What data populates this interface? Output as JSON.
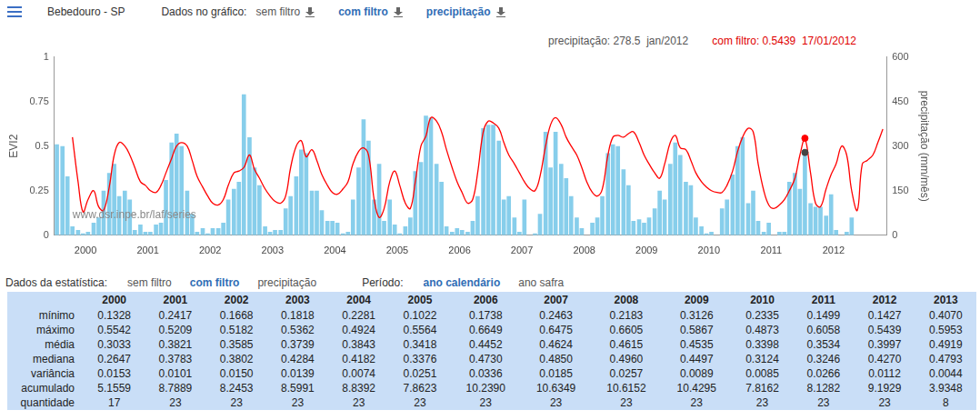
{
  "header": {
    "site": "Bebedouro - SP",
    "data_label": "Dados no gráfico:",
    "options": [
      {
        "text": "sem filtro",
        "active": false
      },
      {
        "text": "com filtro",
        "active": true
      },
      {
        "text": "precipitação",
        "active": true
      }
    ]
  },
  "readout": [
    {
      "text": "precipitação: 278.5  jan/2012",
      "color": "#555555"
    },
    {
      "text": "com filtro: 0.5439  17/01/2012",
      "color": "#e00000"
    }
  ],
  "chart_data": {
    "type": "bar",
    "y_label": "EVI2",
    "y2_label": "precipitação (mm/mês)",
    "annotations": [
      "www.dsr.inpe.br/laf/series"
    ],
    "xlim": [
      2000,
      2013.35
    ],
    "xticks": [
      {
        "value": 2000.5,
        "label": "2000"
      },
      {
        "value": 2001.5,
        "label": "2001"
      },
      {
        "value": 2002.5,
        "label": "2002"
      },
      {
        "value": 2003.5,
        "label": "2003"
      },
      {
        "value": 2004.5,
        "label": "2004"
      },
      {
        "value": 2005.5,
        "label": "2005"
      },
      {
        "value": 2006.5,
        "label": "2006"
      },
      {
        "value": 2007.5,
        "label": "2007"
      },
      {
        "value": 2008.5,
        "label": "2008"
      },
      {
        "value": 2009.5,
        "label": "2009"
      },
      {
        "value": 2010.5,
        "label": "2010"
      },
      {
        "value": 2011.5,
        "label": "2011"
      },
      {
        "value": 2012.5,
        "label": "2012"
      }
    ],
    "ylim": [
      0,
      1
    ],
    "yticks": [
      0,
      0.25,
      0.5,
      0.75,
      1
    ],
    "y2lim": [
      0,
      600
    ],
    "y2ticks": [
      0,
      150,
      300,
      450,
      600
    ],
    "grid": false,
    "series": [
      {
        "name": "precipitação",
        "type": "bar",
        "axis": "y2",
        "color": "#87ceeb",
        "x": [
          2000.04,
          2000.13,
          2000.21,
          2000.29,
          2000.38,
          2000.46,
          2000.54,
          2000.63,
          2000.71,
          2000.79,
          2000.88,
          2000.96,
          2001.04,
          2001.13,
          2001.21,
          2001.29,
          2001.38,
          2001.46,
          2001.54,
          2001.63,
          2001.71,
          2001.79,
          2001.88,
          2001.96,
          2002.04,
          2002.13,
          2002.21,
          2002.29,
          2002.38,
          2002.46,
          2002.54,
          2002.63,
          2002.71,
          2002.79,
          2002.88,
          2002.96,
          2003.04,
          2003.13,
          2003.21,
          2003.29,
          2003.38,
          2003.46,
          2003.54,
          2003.63,
          2003.71,
          2003.79,
          2003.88,
          2003.96,
          2004.04,
          2004.13,
          2004.21,
          2004.29,
          2004.38,
          2004.46,
          2004.54,
          2004.63,
          2004.71,
          2004.79,
          2004.88,
          2004.96,
          2005.04,
          2005.13,
          2005.21,
          2005.29,
          2005.38,
          2005.46,
          2005.54,
          2005.63,
          2005.71,
          2005.79,
          2005.88,
          2005.96,
          2006.04,
          2006.13,
          2006.21,
          2006.29,
          2006.38,
          2006.46,
          2006.54,
          2006.63,
          2006.71,
          2006.79,
          2006.88,
          2006.96,
          2007.04,
          2007.13,
          2007.21,
          2007.29,
          2007.38,
          2007.46,
          2007.54,
          2007.63,
          2007.71,
          2007.79,
          2007.88,
          2007.96,
          2008.04,
          2008.13,
          2008.21,
          2008.29,
          2008.38,
          2008.46,
          2008.54,
          2008.63,
          2008.71,
          2008.79,
          2008.88,
          2008.96,
          2009.04,
          2009.13,
          2009.21,
          2009.29,
          2009.38,
          2009.46,
          2009.54,
          2009.63,
          2009.71,
          2009.79,
          2009.88,
          2009.96,
          2010.04,
          2010.13,
          2010.21,
          2010.29,
          2010.38,
          2010.46,
          2010.54,
          2010.63,
          2010.71,
          2010.79,
          2010.88,
          2010.96,
          2011.04,
          2011.13,
          2011.21,
          2011.29,
          2011.38,
          2011.46,
          2011.54,
          2011.63,
          2011.71,
          2011.79,
          2011.88,
          2011.96,
          2012.04,
          2012.13,
          2012.21,
          2012.29,
          2012.38,
          2012.46,
          2012.54,
          2012.63,
          2012.71,
          2012.79
        ],
        "values": [
          306,
          300,
          198,
          30,
          18,
          6,
          12,
          42,
          60,
          150,
          210,
          240,
          132,
          150,
          120,
          18,
          36,
          12,
          12,
          36,
          42,
          186,
          312,
          342,
          300,
          150,
          72,
          12,
          24,
          6,
          24,
          24,
          42,
          120,
          156,
          180,
          474,
          330,
          228,
          168,
          30,
          12,
          18,
          18,
          90,
          132,
          198,
          288,
          276,
          150,
          150,
          84,
          48,
          48,
          42,
          6,
          12,
          120,
          228,
          390,
          318,
          120,
          240,
          48,
          120,
          36,
          6,
          30,
          60,
          216,
          246,
          402,
          396,
          240,
          180,
          30,
          12,
          24,
          18,
          12,
          48,
          132,
          360,
          372,
          372,
          318,
          120,
          132,
          60,
          12,
          120,
          0,
          6,
          72,
          348,
          228,
          348,
          240,
          192,
          132,
          60,
          24,
          0,
          42,
          60,
          132,
          276,
          306,
          300,
          222,
          168,
          48,
          54,
          42,
          60,
          90,
          150,
          120,
          240,
          312,
          270,
          180,
          168,
          60,
          30,
          6,
          12,
          0,
          90,
          120,
          204,
          300,
          330,
          108,
          150,
          48,
          12,
          42,
          0,
          12,
          12,
          180,
          210,
          156,
          278.5,
          108,
          96,
          96,
          66,
          138,
          18,
          0,
          12,
          60
        ]
      },
      {
        "name": "com filtro",
        "type": "line",
        "axis": "y",
        "color": "#ff0000",
        "x": [
          2000.29,
          2000.38,
          2000.46,
          2000.54,
          2000.63,
          2000.71,
          2000.79,
          2000.88,
          2000.96,
          2001.04,
          2001.13,
          2001.21,
          2001.29,
          2001.38,
          2001.46,
          2001.54,
          2001.63,
          2001.71,
          2001.79,
          2001.88,
          2001.96,
          2002.04,
          2002.13,
          2002.21,
          2002.29,
          2002.38,
          2002.46,
          2002.54,
          2002.63,
          2002.71,
          2002.79,
          2002.88,
          2002.96,
          2003.04,
          2003.13,
          2003.21,
          2003.29,
          2003.38,
          2003.46,
          2003.54,
          2003.63,
          2003.71,
          2003.79,
          2003.88,
          2003.96,
          2004.04,
          2004.13,
          2004.21,
          2004.29,
          2004.38,
          2004.46,
          2004.54,
          2004.63,
          2004.71,
          2004.79,
          2004.88,
          2004.96,
          2005.04,
          2005.13,
          2005.21,
          2005.29,
          2005.38,
          2005.46,
          2005.54,
          2005.63,
          2005.71,
          2005.79,
          2005.88,
          2005.96,
          2006.04,
          2006.13,
          2006.21,
          2006.29,
          2006.38,
          2006.46,
          2006.54,
          2006.63,
          2006.71,
          2006.79,
          2006.88,
          2006.96,
          2007.04,
          2007.13,
          2007.21,
          2007.29,
          2007.38,
          2007.46,
          2007.54,
          2007.63,
          2007.71,
          2007.79,
          2007.88,
          2007.96,
          2008.04,
          2008.13,
          2008.21,
          2008.29,
          2008.38,
          2008.46,
          2008.54,
          2008.63,
          2008.71,
          2008.79,
          2008.88,
          2008.96,
          2009.04,
          2009.13,
          2009.21,
          2009.29,
          2009.38,
          2009.46,
          2009.54,
          2009.63,
          2009.71,
          2009.79,
          2009.88,
          2009.96,
          2010.04,
          2010.13,
          2010.21,
          2010.29,
          2010.38,
          2010.46,
          2010.54,
          2010.63,
          2010.71,
          2010.79,
          2010.88,
          2010.96,
          2011.04,
          2011.13,
          2011.21,
          2011.29,
          2011.38,
          2011.46,
          2011.54,
          2011.63,
          2011.71,
          2011.79,
          2011.88,
          2011.96,
          2012.04,
          2012.13,
          2012.21,
          2012.29,
          2012.38,
          2012.46,
          2012.54,
          2012.63,
          2012.71,
          2012.79,
          2012.88,
          2012.96,
          2013.04,
          2013.13,
          2013.21,
          2013.29
        ],
        "values": [
          0.55,
          0.3,
          0.13,
          0.2,
          0.25,
          0.16,
          0.14,
          0.27,
          0.45,
          0.52,
          0.5,
          0.45,
          0.38,
          0.3,
          0.28,
          0.25,
          0.24,
          0.28,
          0.35,
          0.43,
          0.5,
          0.52,
          0.5,
          0.42,
          0.33,
          0.27,
          0.22,
          0.18,
          0.17,
          0.2,
          0.28,
          0.35,
          0.36,
          0.38,
          0.45,
          0.37,
          0.32,
          0.26,
          0.22,
          0.19,
          0.18,
          0.22,
          0.38,
          0.5,
          0.53,
          0.44,
          0.48,
          0.42,
          0.34,
          0.28,
          0.24,
          0.23,
          0.26,
          0.3,
          0.4,
          0.47,
          0.49,
          0.45,
          0.2,
          0.1,
          0.15,
          0.3,
          0.36,
          0.28,
          0.18,
          0.15,
          0.3,
          0.5,
          0.556,
          0.66,
          0.64,
          0.58,
          0.48,
          0.38,
          0.3,
          0.24,
          0.18,
          0.2,
          0.35,
          0.58,
          0.64,
          0.63,
          0.6,
          0.52,
          0.45,
          0.4,
          0.35,
          0.3,
          0.26,
          0.25,
          0.33,
          0.5,
          0.62,
          0.66,
          0.62,
          0.55,
          0.5,
          0.45,
          0.38,
          0.3,
          0.24,
          0.22,
          0.26,
          0.45,
          0.55,
          0.56,
          0.55,
          0.57,
          0.58,
          0.52,
          0.45,
          0.4,
          0.35,
          0.32,
          0.4,
          0.52,
          0.56,
          0.49,
          0.48,
          0.42,
          0.35,
          0.3,
          0.27,
          0.25,
          0.24,
          0.24,
          0.28,
          0.36,
          0.47,
          0.55,
          0.6,
          0.58,
          0.4,
          0.25,
          0.17,
          0.15,
          0.17,
          0.2,
          0.25,
          0.32,
          0.45,
          0.54,
          0.35,
          0.18,
          0.16,
          0.26,
          0.34,
          0.4,
          0.5,
          0.45,
          0.25,
          0.14,
          0.4,
          0.42,
          0.45,
          0.52,
          0.595
        ]
      }
    ],
    "highlights": [
      {
        "series": "precipitação",
        "axis": "y2",
        "x": 2012.04,
        "y": 278.5,
        "color": "#444444",
        "marker": "circle"
      },
      {
        "series": "com filtro",
        "axis": "y",
        "x": 2012.04,
        "y": 0.5439,
        "color": "#ff0000",
        "marker": "circle"
      }
    ]
  },
  "stats": {
    "label": "Dados da estatística:",
    "options": [
      {
        "text": "sem filtro",
        "active": false
      },
      {
        "text": "com filtro",
        "active": true
      },
      {
        "text": "precipitação",
        "active": false
      }
    ],
    "period_label": "Período:",
    "periods": [
      {
        "text": "ano calendário",
        "active": true
      },
      {
        "text": "ano safra",
        "active": false
      }
    ],
    "table": {
      "columns": [
        "2000",
        "2001",
        "2002",
        "2003",
        "2004",
        "2005",
        "2006",
        "2007",
        "2008",
        "2009",
        "2010",
        "2011",
        "2012",
        "2013"
      ],
      "rows": [
        {
          "label": "mínimo",
          "values": [
            "0.1328",
            "0.2417",
            "0.1668",
            "0.1818",
            "0.2281",
            "0.1022",
            "0.1738",
            "0.2463",
            "0.2183",
            "0.3126",
            "0.2335",
            "0.1499",
            "0.1427",
            "0.4070"
          ]
        },
        {
          "label": "máximo",
          "values": [
            "0.5542",
            "0.5209",
            "0.5182",
            "0.5362",
            "0.4924",
            "0.5564",
            "0.6649",
            "0.6475",
            "0.6605",
            "0.5867",
            "0.4873",
            "0.6058",
            "0.5439",
            "0.5953"
          ]
        },
        {
          "label": "média",
          "values": [
            "0.3033",
            "0.3821",
            "0.3585",
            "0.3739",
            "0.3843",
            "0.3418",
            "0.4452",
            "0.4624",
            "0.4615",
            "0.4535",
            "0.3398",
            "0.3534",
            "0.3997",
            "0.4919"
          ]
        },
        {
          "label": "mediana",
          "values": [
            "0.2647",
            "0.3783",
            "0.3802",
            "0.4284",
            "0.4182",
            "0.3376",
            "0.4730",
            "0.4850",
            "0.4960",
            "0.4497",
            "0.3124",
            "0.3246",
            "0.4270",
            "0.4793"
          ]
        },
        {
          "label": "variância",
          "values": [
            "0.0153",
            "0.0101",
            "0.0150",
            "0.0139",
            "0.0074",
            "0.0251",
            "0.0336",
            "0.0185",
            "0.0257",
            "0.0089",
            "0.0085",
            "0.0266",
            "0.0112",
            "0.0044"
          ]
        },
        {
          "label": "acumulado",
          "values": [
            "5.1559",
            "8.7889",
            "8.2453",
            "8.5991",
            "8.8392",
            "7.8623",
            "10.2390",
            "10.6349",
            "10.6152",
            "10.4295",
            "7.8162",
            "8.1282",
            "9.1929",
            "3.9348"
          ]
        },
        {
          "label": "quantidade",
          "values": [
            "17",
            "23",
            "23",
            "23",
            "23",
            "23",
            "23",
            "23",
            "23",
            "23",
            "23",
            "23",
            "23",
            "8"
          ]
        }
      ]
    }
  }
}
